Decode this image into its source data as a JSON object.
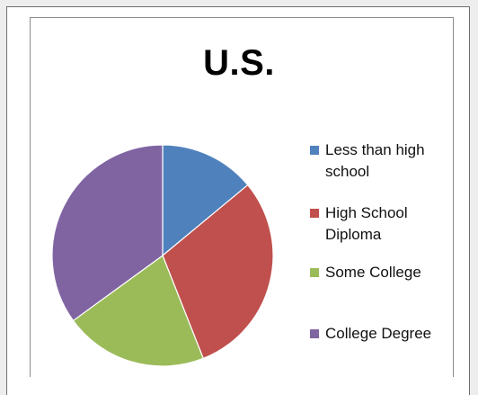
{
  "chart_data": {
    "type": "pie",
    "title": "U.S.",
    "categories": [
      "Less than high school",
      "High School Diploma",
      "Some College",
      "College Degree"
    ],
    "values": [
      14,
      30,
      21,
      35
    ],
    "colors": [
      "#4f81bd",
      "#c0504d",
      "#9bbb59",
      "#8064a2"
    ],
    "legend_position": "right",
    "legend": [
      {
        "label": "Less than high school",
        "color": "#4f81bd"
      },
      {
        "label": "High School Diploma",
        "color": "#c0504d"
      },
      {
        "label": "Some College",
        "color": "#9bbb59"
      },
      {
        "label": "College Degree",
        "color": "#8064a2"
      }
    ]
  }
}
